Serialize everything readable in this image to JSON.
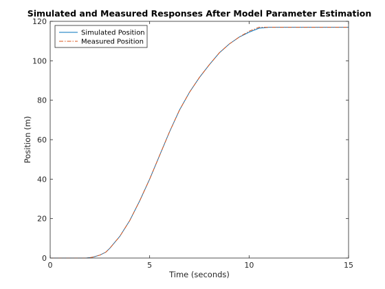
{
  "chart_data": {
    "type": "line",
    "title": "Simulated and Measured Responses After Model Parameter Estimation",
    "xlabel": "Time (seconds)",
    "ylabel": "Position (m)",
    "xlim": [
      0,
      15
    ],
    "ylim": [
      0,
      120
    ],
    "xticks": [
      0,
      5,
      10,
      15
    ],
    "yticks": [
      0,
      20,
      40,
      60,
      80,
      100,
      120
    ],
    "grid": false,
    "legend_position": "top-left",
    "x": [
      0,
      1,
      1.5,
      1.8,
      2,
      2.2,
      2.5,
      2.8,
      3,
      3.5,
      4,
      4.5,
      5,
      5.5,
      6,
      6.5,
      7,
      7.5,
      8,
      8.5,
      9,
      9.5,
      10,
      10.5,
      11,
      12,
      13,
      14,
      15
    ],
    "series": [
      {
        "name": "Simulated Position",
        "color": "#0072bd",
        "style": "solid",
        "values": [
          0,
          0,
          0,
          0,
          0.2,
          0.6,
          1.5,
          3,
          5,
          11,
          19,
          29,
          40,
          52,
          64,
          75,
          84,
          91.5,
          98,
          104,
          108.5,
          112,
          114.5,
          116.5,
          117,
          117,
          117,
          117,
          117
        ]
      },
      {
        "name": "Measured Position",
        "color": "#d95319",
        "style": "dashdot",
        "values": [
          0,
          0,
          0,
          0,
          0.2,
          0.6,
          1.5,
          3,
          5,
          11,
          19,
          29,
          40,
          52,
          64,
          75,
          84,
          91.5,
          98,
          104,
          108.5,
          112,
          115,
          117,
          117,
          117,
          117,
          117,
          117
        ]
      }
    ]
  }
}
